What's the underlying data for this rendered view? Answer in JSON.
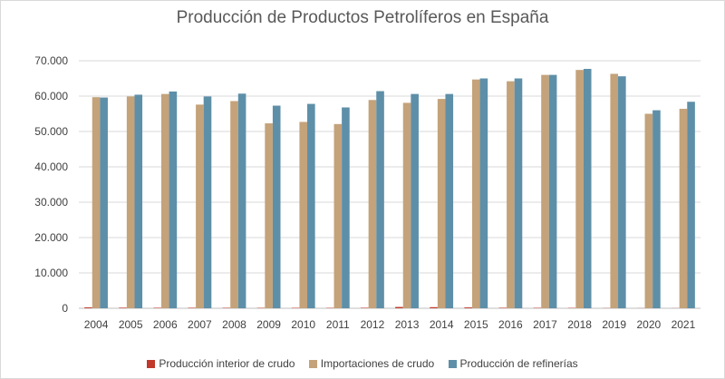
{
  "chart_data": {
    "type": "bar",
    "title": "Producción de Productos Petrolíferos en España",
    "xlabel": "",
    "ylabel": "",
    "ylim": [
      0,
      70000
    ],
    "y_ticks": [
      "0",
      "10.000",
      "20.000",
      "30.000",
      "40.000",
      "50.000",
      "60.000",
      "70.000"
    ],
    "y_tick_values": [
      0,
      10000,
      20000,
      30000,
      40000,
      50000,
      60000,
      70000
    ],
    "grid": true,
    "legend_position": "bottom",
    "categories": [
      "2004",
      "2005",
      "2006",
      "2007",
      "2008",
      "2009",
      "2010",
      "2011",
      "2012",
      "2013",
      "2014",
      "2015",
      "2016",
      "2017",
      "2018",
      "2019",
      "2020",
      "2021"
    ],
    "series": [
      {
        "name": "Producción interior de crudo",
        "color": "#c0392b",
        "values": [
          250,
          170,
          140,
          140,
          130,
          110,
          120,
          100,
          140,
          370,
          310,
          240,
          140,
          120,
          100,
          50,
          30,
          30
        ]
      },
      {
        "name": "Importaciones de crudo",
        "color": "#c4a27a",
        "values": [
          59700,
          59900,
          60600,
          57600,
          58600,
          52300,
          52700,
          52100,
          58900,
          58100,
          59200,
          64700,
          64200,
          66000,
          67400,
          66300,
          55000,
          56400
        ]
      },
      {
        "name": "Producción de refinerías",
        "color": "#5e8fa8",
        "values": [
          59600,
          60400,
          61300,
          59900,
          60700,
          57300,
          57800,
          56800,
          61400,
          60600,
          60600,
          65000,
          65000,
          66000,
          67700,
          65600,
          56000,
          58400
        ]
      }
    ]
  }
}
